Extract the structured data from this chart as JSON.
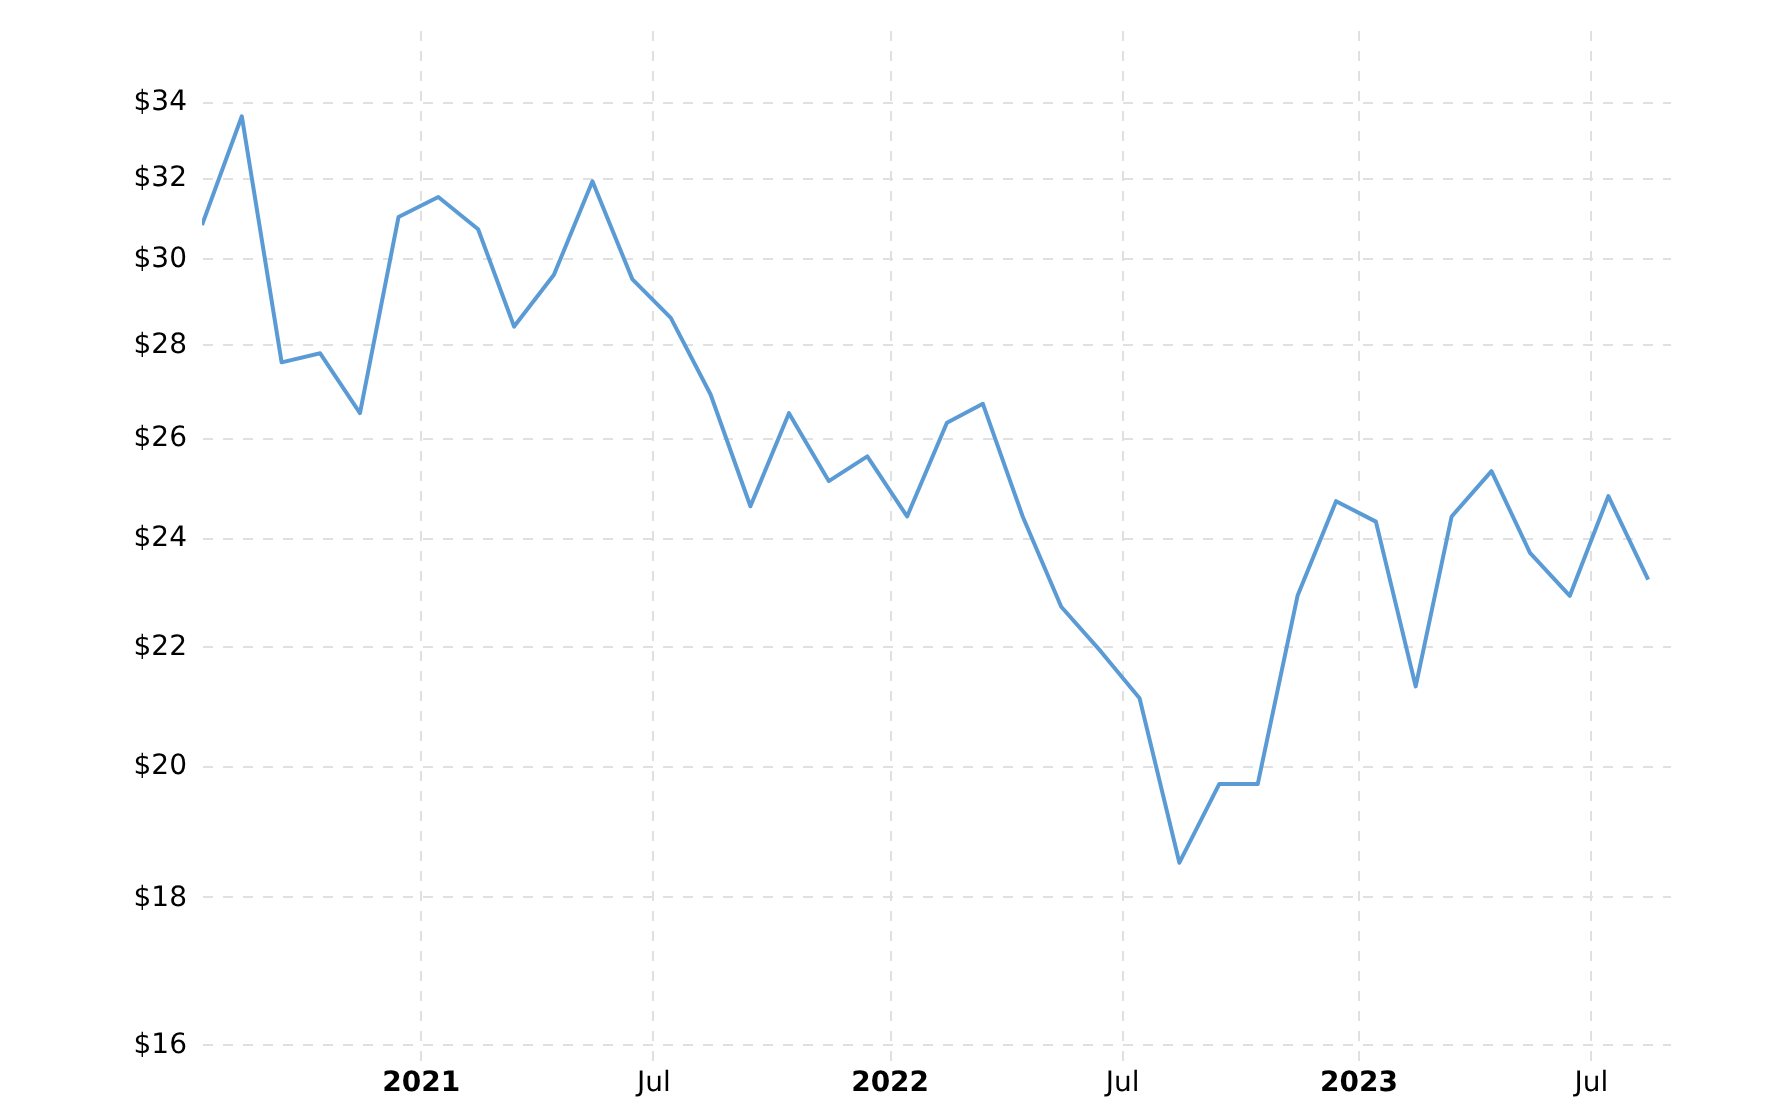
{
  "chart_data": {
    "type": "line",
    "log": "y",
    "grid": true,
    "marker": "none",
    "line_style": "solid",
    "x": [
      "2020-07-15",
      "2020-08-15",
      "2020-09-15",
      "2020-10-15",
      "2020-11-15",
      "2020-12-15",
      "2021-01-15",
      "2021-02-15",
      "2021-03-15",
      "2021-04-15",
      "2021-05-15",
      "2021-06-15",
      "2021-07-15",
      "2021-08-15",
      "2021-09-15",
      "2021-10-15",
      "2021-11-15",
      "2021-12-15",
      "2022-01-15",
      "2022-02-15",
      "2022-03-15",
      "2022-04-15",
      "2022-05-15",
      "2022-06-15",
      "2022-07-15",
      "2022-08-15",
      "2022-09-15",
      "2022-10-15",
      "2022-11-15",
      "2022-12-15",
      "2023-01-15",
      "2023-02-15",
      "2023-03-15",
      "2023-04-15",
      "2023-05-15",
      "2023-06-15",
      "2023-07-15",
      "2023-08-15"
    ],
    "series": [
      {
        "color": "#5b9bd5",
        "values": [
          30.8,
          33.6,
          27.6,
          27.8,
          26.5,
          31.0,
          31.5,
          30.7,
          28.4,
          29.6,
          31.9,
          29.5,
          28.6,
          26.9,
          24.6,
          26.5,
          25.1,
          25.6,
          24.4,
          26.3,
          26.7,
          24.4,
          22.7,
          21.9,
          21.1,
          18.5,
          19.7,
          19.7,
          22.9,
          24.7,
          24.3,
          21.3,
          24.4,
          25.3,
          23.7,
          22.9,
          24.8,
          23.2
        ]
      }
    ],
    "xlim": [
      "2020-07-15",
      "2023-09-01"
    ],
    "xticks": [
      {
        "value": "2021-01-01",
        "label": "2021"
      },
      {
        "value": "2021-07-01",
        "label": "Jul"
      },
      {
        "value": "2022-01-01",
        "label": "2022"
      },
      {
        "value": "2022-07-01",
        "label": "Jul"
      },
      {
        "value": "2023-01-01",
        "label": "2023"
      },
      {
        "value": "2023-07-01",
        "label": "Jul"
      }
    ],
    "ylim": [
      15.8,
      36
    ],
    "yticks": [
      {
        "value": 16,
        "label": "$16"
      },
      {
        "value": 18,
        "label": "$18"
      },
      {
        "value": 20,
        "label": "$20"
      },
      {
        "value": 22,
        "label": "$22"
      },
      {
        "value": 24,
        "label": "$24"
      },
      {
        "value": 26,
        "label": "$26"
      },
      {
        "value": 28,
        "label": "$28"
      },
      {
        "value": 30,
        "label": "$30"
      },
      {
        "value": 32,
        "label": "$32"
      },
      {
        "value": 34,
        "label": "$34"
      }
    ]
  }
}
